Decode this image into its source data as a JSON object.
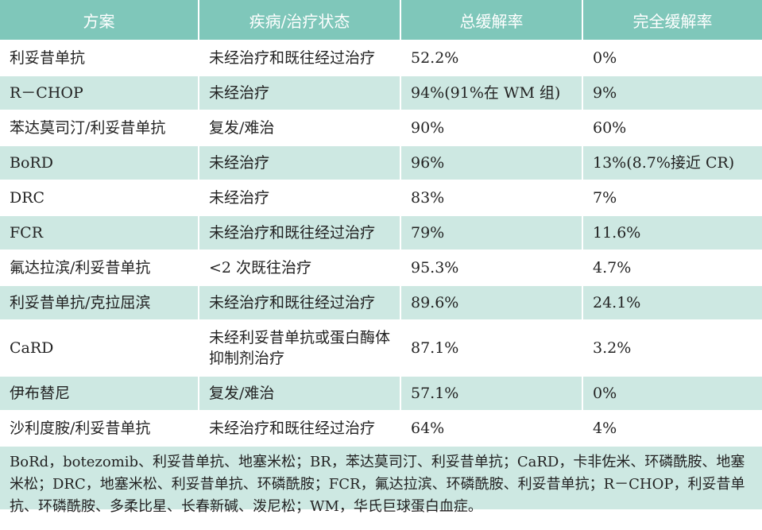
{
  "table": {
    "headers": [
      "方案",
      "疾病/治疗状态",
      "总缓解率",
      "完全缓解率"
    ],
    "rows": [
      [
        "利妥昔单抗",
        "未经治疗和既往经过治疗",
        "52.2%",
        "0%"
      ],
      [
        "R－CHOP",
        "未经治疗",
        "94%(91%在 WM 组)",
        "9%"
      ],
      [
        "苯达莫司汀/利妥昔单抗",
        "复发/难治",
        "90%",
        "60%"
      ],
      [
        "BoRD",
        "未经治疗",
        "96%",
        "13%(8.7%接近 CR)"
      ],
      [
        "DRC",
        "未经治疗",
        "83%",
        "7%"
      ],
      [
        "FCR",
        "未经治疗和既往经过治疗",
        "79%",
        "11.6%"
      ],
      [
        "氟达拉滨/利妥昔单抗",
        "<2 次既往治疗",
        "95.3%",
        "4.7%"
      ],
      [
        "利妥昔单抗/克拉屈滨",
        "未经治疗和既往经过治疗",
        "89.6%",
        "24.1%"
      ],
      [
        "CaRD",
        "未经利妥昔单抗或蛋白酶体抑制剂治疗",
        "87.1%",
        "3.2%"
      ],
      [
        "伊布替尼",
        "复发/难治",
        "57.1%",
        "0%"
      ],
      [
        "沙利度胺/利妥昔单抗",
        "未经治疗和既往经过治疗",
        "64%",
        "4%"
      ]
    ]
  },
  "footnote": "BoRd，botezomib、利妥昔单抗、地塞米松；BR，苯达莫司汀、利妥昔单抗；CaRD，卡非佐米、环磷酰胺、地塞米松；DRC，地塞米松、利妥昔单抗、环磷酰胺；FCR，氟达拉滨、环磷酰胺、利妥昔单抗；R－CHOP，利妥昔单抗、环磷酰胺、多柔比星、长春新碱、泼尼松；WM，华氏巨球蛋白血症。"
}
